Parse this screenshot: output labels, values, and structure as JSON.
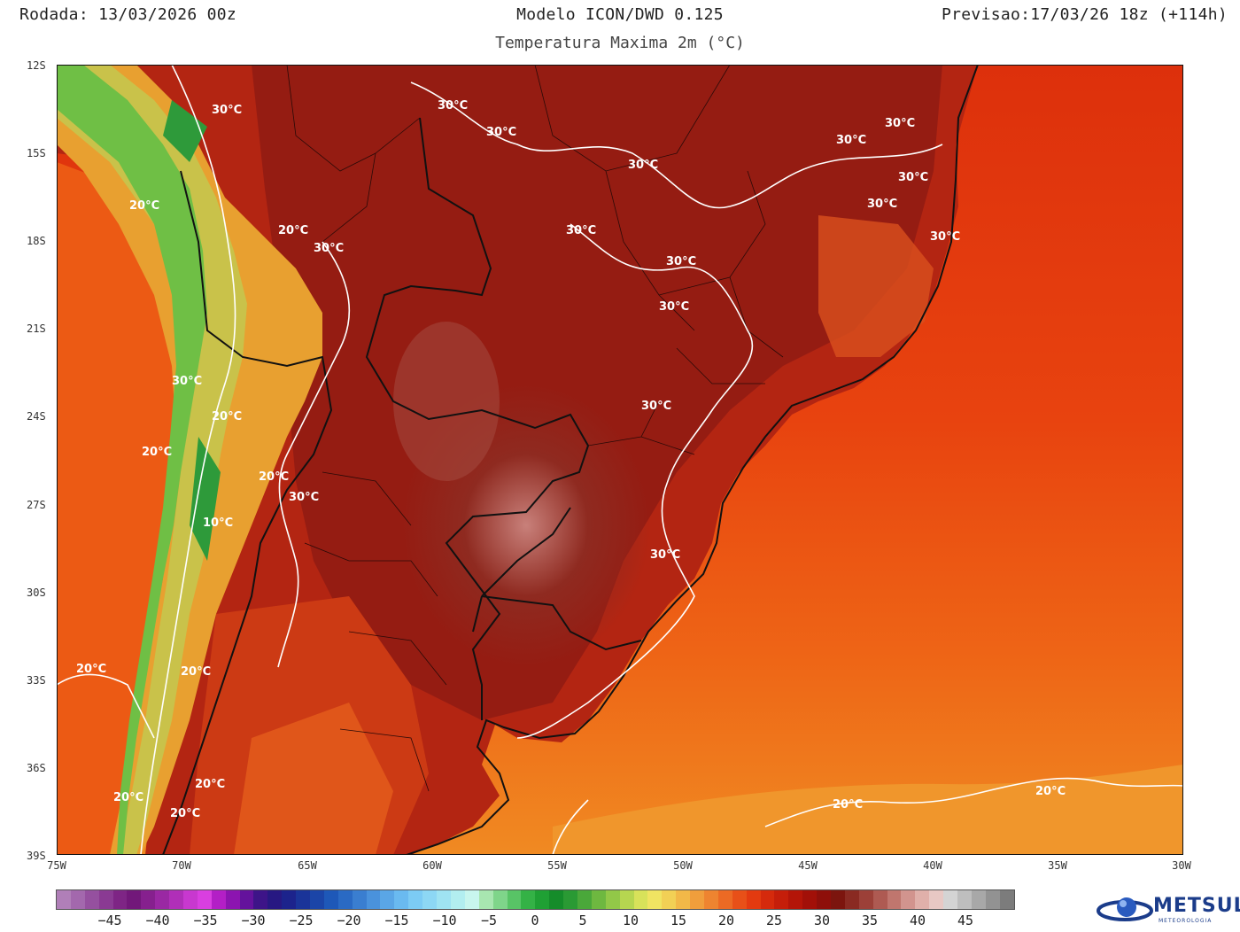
{
  "header": {
    "run": "Rodada: 13/03/2026 00z",
    "model": "Modelo ICON/DWD 0.125",
    "forecast": "Previsao:17/03/26 18z (+114h)",
    "variable": "Temperatura Maxima 2m (°C)"
  },
  "map": {
    "lat_labels": [
      "12S",
      "15S",
      "18S",
      "21S",
      "24S",
      "27S",
      "30S",
      "33S",
      "36S",
      "39S"
    ],
    "lon_labels": [
      "75W",
      "70W",
      "65W",
      "60W",
      "55W",
      "50W",
      "45W",
      "40W",
      "35W",
      "30W"
    ],
    "isotherm_labels": [
      "30°C",
      "30°C",
      "30°C",
      "30°C",
      "30°C",
      "30°C",
      "30°C",
      "30°C",
      "30°C",
      "30°C",
      "30°C",
      "30°C",
      "30°C",
      "30°C",
      "30°C",
      "30°C",
      "30°C",
      "20°C",
      "20°C",
      "20°C",
      "20°C",
      "20°C",
      "20°C",
      "20°C",
      "20°C",
      "20°C",
      "20°C",
      "20°C",
      "10°C",
      "20°C"
    ]
  },
  "colorbar": {
    "tick_labels": [
      "−45",
      "−40",
      "−35",
      "−30",
      "−25",
      "−20",
      "−15",
      "−10",
      "−5",
      "0",
      "5",
      "10",
      "15",
      "20",
      "25",
      "30",
      "35",
      "40",
      "45"
    ]
  },
  "logo": {
    "name": "METSUL",
    "subtitle": "METEOROLOGIA"
  },
  "colors": {
    "ocean_warm": "#e8410f",
    "ocean_cool": "#f07a1a",
    "land_hot": "#9a1a10",
    "land_very_hot": "#7a1510",
    "andes_green": "#6fbf45",
    "isoline": "#ffffff"
  }
}
